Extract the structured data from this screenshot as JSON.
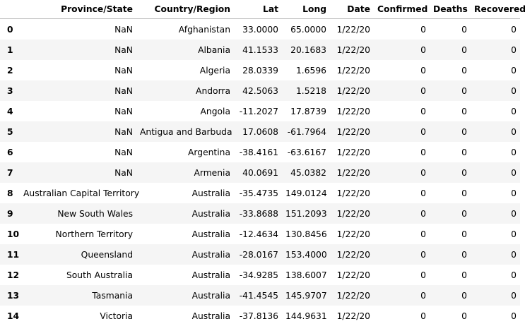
{
  "table": {
    "columns": [
      "",
      "Province/State",
      "Country/Region",
      "Lat",
      "Long",
      "Date",
      "Confirmed",
      "Deaths",
      "Recovered"
    ],
    "rows": [
      {
        "index": "0",
        "cells": [
          "NaN",
          "Afghanistan",
          "33.0000",
          "65.0000",
          "1/22/20",
          "0",
          "0",
          "0"
        ]
      },
      {
        "index": "1",
        "cells": [
          "NaN",
          "Albania",
          "41.1533",
          "20.1683",
          "1/22/20",
          "0",
          "0",
          "0"
        ]
      },
      {
        "index": "2",
        "cells": [
          "NaN",
          "Algeria",
          "28.0339",
          "1.6596",
          "1/22/20",
          "0",
          "0",
          "0"
        ]
      },
      {
        "index": "3",
        "cells": [
          "NaN",
          "Andorra",
          "42.5063",
          "1.5218",
          "1/22/20",
          "0",
          "0",
          "0"
        ]
      },
      {
        "index": "4",
        "cells": [
          "NaN",
          "Angola",
          "-11.2027",
          "17.8739",
          "1/22/20",
          "0",
          "0",
          "0"
        ]
      },
      {
        "index": "5",
        "cells": [
          "NaN",
          "Antigua and Barbuda",
          "17.0608",
          "-61.7964",
          "1/22/20",
          "0",
          "0",
          "0"
        ]
      },
      {
        "index": "6",
        "cells": [
          "NaN",
          "Argentina",
          "-38.4161",
          "-63.6167",
          "1/22/20",
          "0",
          "0",
          "0"
        ]
      },
      {
        "index": "7",
        "cells": [
          "NaN",
          "Armenia",
          "40.0691",
          "45.0382",
          "1/22/20",
          "0",
          "0",
          "0"
        ]
      },
      {
        "index": "8",
        "cells": [
          "Australian Capital Territory",
          "Australia",
          "-35.4735",
          "149.0124",
          "1/22/20",
          "0",
          "0",
          "0"
        ]
      },
      {
        "index": "9",
        "cells": [
          "New South Wales",
          "Australia",
          "-33.8688",
          "151.2093",
          "1/22/20",
          "0",
          "0",
          "0"
        ]
      },
      {
        "index": "10",
        "cells": [
          "Northern Territory",
          "Australia",
          "-12.4634",
          "130.8456",
          "1/22/20",
          "0",
          "0",
          "0"
        ]
      },
      {
        "index": "11",
        "cells": [
          "Queensland",
          "Australia",
          "-28.0167",
          "153.4000",
          "1/22/20",
          "0",
          "0",
          "0"
        ]
      },
      {
        "index": "12",
        "cells": [
          "South Australia",
          "Australia",
          "-34.9285",
          "138.6007",
          "1/22/20",
          "0",
          "0",
          "0"
        ]
      },
      {
        "index": "13",
        "cells": [
          "Tasmania",
          "Australia",
          "-41.4545",
          "145.9707",
          "1/22/20",
          "0",
          "0",
          "0"
        ]
      },
      {
        "index": "14",
        "cells": [
          "Victoria",
          "Australia",
          "-37.8136",
          "144.9631",
          "1/22/20",
          "0",
          "0",
          "0"
        ]
      }
    ]
  }
}
